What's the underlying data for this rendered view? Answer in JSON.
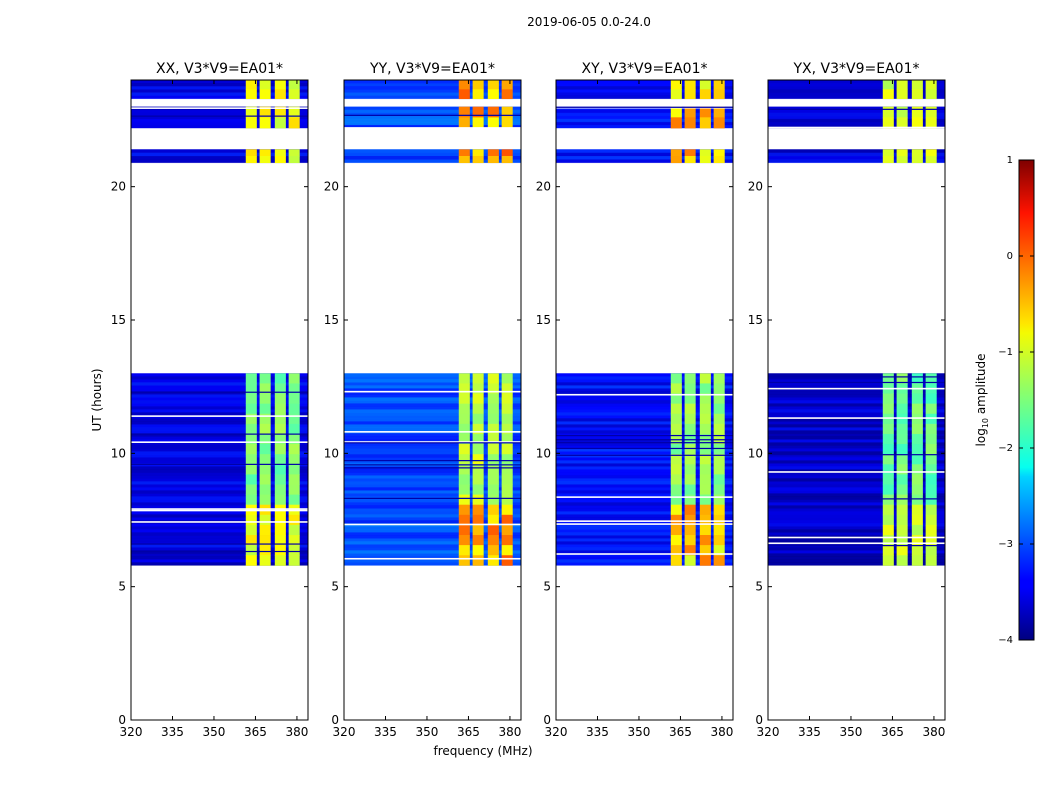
{
  "figure": {
    "suptitle": "2019-06-05 0.0-24.0"
  },
  "chart_data": {
    "type": "heatmap",
    "xlabel": "frequency (MHz)",
    "ylabel": "UT (hours)",
    "xlim": [
      320,
      384
    ],
    "ylim": [
      0,
      24
    ],
    "xticks": [
      320,
      335,
      350,
      365,
      380
    ],
    "yticks": [
      0,
      5,
      10,
      15,
      20
    ],
    "rfi_columns_mhz": [
      {
        "from": 361.5,
        "to": 365.5
      },
      {
        "from": 366.5,
        "to": 370.5
      },
      {
        "from": 372.0,
        "to": 376.0
      },
      {
        "from": 377.0,
        "to": 381.0
      }
    ],
    "data_blocks_ut": [
      {
        "from": 5.8,
        "to": 13.0
      },
      {
        "from": 20.9,
        "to": 21.4
      },
      {
        "from": 22.2,
        "to": 23.0
      },
      {
        "from": 23.3,
        "to": 24.0
      }
    ],
    "panels": [
      {
        "title": "XX, V3*V9=EA01*",
        "baseline_log_amp": -3.5,
        "rfi_log_amp": -1.5,
        "peak_log_amp": -1.0
      },
      {
        "title": "YY, V3*V9=EA01*",
        "baseline_log_amp": -3.0,
        "rfi_log_amp": -1.2,
        "peak_log_amp": -0.3
      },
      {
        "title": "XY, V3*V9=EA01*",
        "baseline_log_amp": -3.3,
        "rfi_log_amp": -1.4,
        "peak_log_amp": -0.5
      },
      {
        "title": "YX, V3*V9=EA01*",
        "baseline_log_amp": -3.6,
        "rfi_log_amp": -1.6,
        "peak_log_amp": -1.2
      }
    ],
    "colorbar": {
      "label": "log10 amplitude",
      "label_main": "log",
      "label_sub": "10",
      "label_rest": " amplitude",
      "range": [
        -4,
        1
      ],
      "ticks": [
        1,
        0,
        -1,
        -2,
        -3,
        -4
      ],
      "tick_labels": [
        "1",
        "0",
        "−1",
        "−2",
        "−3",
        "−4"
      ],
      "colormap": "jet"
    }
  }
}
